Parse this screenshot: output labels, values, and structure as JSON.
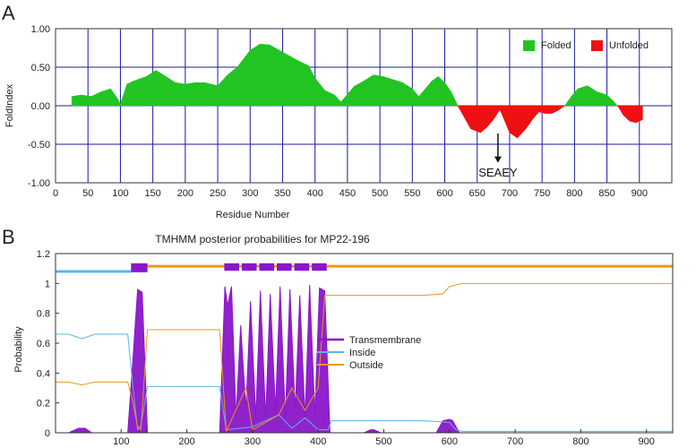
{
  "panels": {
    "a": "A",
    "b": "B"
  },
  "chart_data": [
    {
      "type": "area",
      "title": "",
      "xlabel": "Residue Number",
      "ylabel": "FoldIndex",
      "xlim": [
        0,
        950
      ],
      "ylim": [
        -1.0,
        1.0
      ],
      "xticks": [
        "0",
        "50",
        "100",
        "150",
        "200",
        "250",
        "300",
        "350",
        "400",
        "450",
        "500",
        "550",
        "600",
        "650",
        "700",
        "750",
        "800",
        "850",
        "900"
      ],
      "yticks": [
        "1.00",
        "0.50",
        "0.00",
        "-0.50",
        "-1.00"
      ],
      "grid": true,
      "legend": {
        "position": "top-right",
        "entries": [
          {
            "label": "Folded",
            "color": "#22c422"
          },
          {
            "label": "Unfolded",
            "color": "#ee1111"
          }
        ]
      },
      "annotation": {
        "text": "SEAEY",
        "x": 682
      },
      "series": [
        {
          "name": "FoldIndex",
          "x": [
            25,
            40,
            55,
            70,
            85,
            95,
            100,
            110,
            120,
            140,
            155,
            170,
            185,
            200,
            215,
            230,
            250,
            265,
            280,
            300,
            315,
            330,
            345,
            360,
            375,
            390,
            400,
            415,
            430,
            440,
            450,
            460,
            475,
            490,
            505,
            520,
            535,
            550,
            560,
            570,
            580,
            590,
            600,
            610,
            620,
            628,
            640,
            655,
            665,
            675,
            685,
            700,
            712,
            725,
            735,
            745,
            755,
            765,
            775,
            785,
            795,
            805,
            820,
            835,
            850,
            860,
            868,
            875,
            885,
            895,
            905
          ],
          "y": [
            0.12,
            0.14,
            0.12,
            0.18,
            0.22,
            0.1,
            0.02,
            0.28,
            0.32,
            0.38,
            0.46,
            0.38,
            0.3,
            0.28,
            0.3,
            0.3,
            0.26,
            0.4,
            0.5,
            0.72,
            0.8,
            0.79,
            0.72,
            0.65,
            0.58,
            0.52,
            0.36,
            0.2,
            0.14,
            0.05,
            0.15,
            0.25,
            0.32,
            0.4,
            0.38,
            0.34,
            0.3,
            0.22,
            0.12,
            0.22,
            0.32,
            0.38,
            0.3,
            0.18,
            0.0,
            -0.12,
            -0.3,
            -0.35,
            -0.28,
            -0.18,
            -0.05,
            -0.35,
            -0.42,
            -0.3,
            -0.18,
            -0.08,
            -0.1,
            -0.1,
            -0.06,
            0.0,
            0.12,
            0.22,
            0.26,
            0.18,
            0.14,
            0.06,
            -0.02,
            -0.12,
            -0.2,
            -0.22,
            -0.18
          ]
        }
      ]
    },
    {
      "type": "line",
      "title": "TMHMM posterior probabilities for MP22-196",
      "xlabel": "",
      "ylabel": "Probability",
      "xlim": [
        0,
        940
      ],
      "ylim": [
        0,
        1.2
      ],
      "xticks": [
        "100",
        "200",
        "300",
        "400",
        "500",
        "600",
        "700",
        "800",
        "900"
      ],
      "yticks": [
        "0",
        "0.2",
        "0.4",
        "0.6",
        "0.8",
        "1",
        "1.2"
      ],
      "grid": false,
      "legend": {
        "position": "center-right",
        "entries": [
          {
            "label": "Transmembrane",
            "color": "#8a16c8"
          },
          {
            "label": "Inside",
            "color": "#5ab4e6"
          },
          {
            "label": "Outside",
            "color": "#e89a17"
          }
        ]
      },
      "topology_bars": [
        {
          "type": "inside",
          "from": 0,
          "to": 115
        },
        {
          "type": "transmembrane",
          "from": 115,
          "to": 140
        },
        {
          "type": "outside",
          "from": 140,
          "to": 255
        },
        {
          "type": "transmembrane",
          "from": 255,
          "to": 415
        },
        {
          "type": "outside",
          "from": 415,
          "to": 940
        }
      ],
      "series": [
        {
          "name": "Transmembrane",
          "x": [
            0,
            20,
            35,
            45,
            55,
            70,
            110,
            118,
            125,
            132,
            140,
            250,
            258,
            262,
            268,
            275,
            282,
            290,
            297,
            305,
            312,
            320,
            327,
            335,
            342,
            350,
            357,
            365,
            372,
            380,
            387,
            395,
            402,
            410,
            418,
            470,
            480,
            485,
            495,
            580,
            590,
            600,
            605,
            615,
            620,
            940
          ],
          "y": [
            0.0,
            0.0,
            0.03,
            0.03,
            0.0,
            0.0,
            0.0,
            0.5,
            0.96,
            0.94,
            0.0,
            0.0,
            0.98,
            0.85,
            0.98,
            0.1,
            0.72,
            0.15,
            0.88,
            0.1,
            0.95,
            0.1,
            0.93,
            0.15,
            0.98,
            0.1,
            0.96,
            0.15,
            0.92,
            0.1,
            0.99,
            0.12,
            0.97,
            0.95,
            0.0,
            0.0,
            0.02,
            0.02,
            0.0,
            0.0,
            0.08,
            0.09,
            0.08,
            0.0,
            0.0,
            0.0
          ]
        },
        {
          "name": "Inside",
          "x": [
            0,
            20,
            40,
            60,
            80,
            110,
            118,
            125,
            130,
            140,
            200,
            250,
            260,
            300,
            340,
            360,
            380,
            400,
            415,
            420,
            560,
            600,
            610,
            620,
            700,
            800,
            940
          ],
          "y": [
            0.66,
            0.66,
            0.63,
            0.66,
            0.66,
            0.66,
            0.3,
            0.02,
            0.05,
            0.31,
            0.31,
            0.31,
            0.02,
            0.04,
            0.12,
            0.03,
            0.1,
            0.02,
            0.02,
            0.08,
            0.08,
            0.07,
            0.02,
            0.01,
            0.01,
            0.01,
            0.01
          ]
        },
        {
          "name": "Outside",
          "x": [
            0,
            20,
            40,
            60,
            80,
            110,
            118,
            125,
            130,
            140,
            200,
            250,
            260,
            290,
            300,
            340,
            360,
            380,
            400,
            410,
            420,
            560,
            590,
            600,
            610,
            620,
            700,
            800,
            940
          ],
          "y": [
            0.34,
            0.34,
            0.32,
            0.34,
            0.34,
            0.34,
            0.2,
            0.04,
            0.02,
            0.69,
            0.69,
            0.69,
            0.01,
            0.3,
            0.02,
            0.12,
            0.3,
            0.15,
            0.3,
            0.92,
            0.92,
            0.92,
            0.93,
            0.98,
            0.99,
            1.0,
            1.0,
            1.0,
            1.0
          ]
        }
      ]
    }
  ]
}
